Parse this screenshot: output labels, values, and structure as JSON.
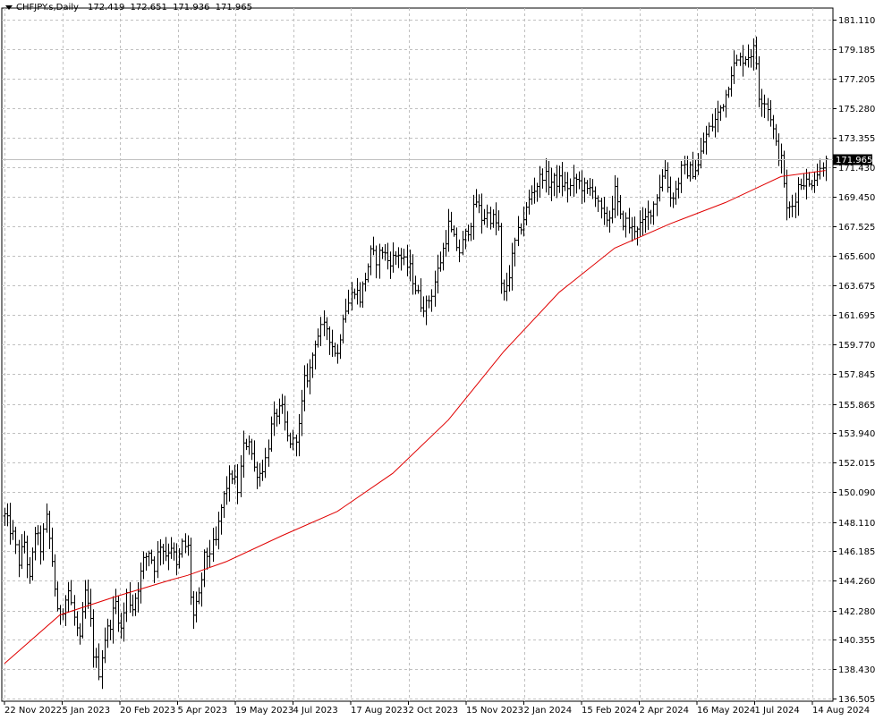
{
  "header": {
    "symbol_timeframe": "CHFJPY.s,Daily",
    "open": "172.419",
    "high": "172.651",
    "low": "171.936",
    "close": "171.965"
  },
  "colors": {
    "background": "#ffffff",
    "grid": "#c0c0c0",
    "bar": "#000000",
    "ma_line": "#e00000",
    "current_price_line": "#c0c0c0",
    "current_price_label_bg": "#000000",
    "current_price_label_text": "#ffffff"
  },
  "chart_data": {
    "type": "ohlc",
    "timeframe": "Daily",
    "symbol": "CHFJPY.s",
    "current_price": 171.965,
    "current_price_label": "171.965",
    "y_ticks": [
      "181.110",
      "179.185",
      "177.205",
      "175.280",
      "173.355",
      "171.430",
      "169.450",
      "167.525",
      "165.600",
      "163.675",
      "161.695",
      "159.770",
      "157.845",
      "155.865",
      "153.940",
      "152.015",
      "150.090",
      "148.110",
      "146.185",
      "144.260",
      "142.280",
      "140.355",
      "138.430",
      "136.505"
    ],
    "ylim": [
      136.505,
      181.11
    ],
    "x_ticks": [
      "22 Nov 2022",
      "5 Jan 2023",
      "20 Feb 2023",
      "5 Apr 2023",
      "19 May 2023",
      "4 Jul 2023",
      "17 Aug 2023",
      "2 Oct 2023",
      "15 Nov 2023",
      "2 Jan 2024",
      "15 Feb 2024",
      "2 Apr 2024",
      "16 May 2024",
      "1 Jul 2024",
      "14 Aug 2024"
    ],
    "grid": true,
    "price_path": [
      [
        0,
        148.5
      ],
      [
        3,
        147.2
      ],
      [
        5,
        145.5
      ],
      [
        7,
        146.8
      ],
      [
        9,
        144.2
      ],
      [
        11,
        147.5
      ],
      [
        13,
        146.4
      ],
      [
        15,
        148.3
      ],
      [
        17,
        145.6
      ],
      [
        19,
        142.0
      ],
      [
        21,
        142.5
      ],
      [
        23,
        143.6
      ],
      [
        25,
        141.8
      ],
      [
        27,
        140.2
      ],
      [
        29,
        143.5
      ],
      [
        31,
        141.5
      ],
      [
        32,
        139.5
      ],
      [
        34,
        138.3
      ],
      [
        36,
        140.5
      ],
      [
        38,
        141.5
      ],
      [
        40,
        142.8
      ],
      [
        42,
        141.0
      ],
      [
        44,
        143.3
      ],
      [
        46,
        142.5
      ],
      [
        48,
        143.9
      ],
      [
        50,
        145.5
      ],
      [
        52,
        146.2
      ],
      [
        54,
        145.2
      ],
      [
        56,
        146.7
      ],
      [
        58,
        146.0
      ],
      [
        60,
        146.6
      ],
      [
        62,
        145.1
      ],
      [
        64,
        146.6
      ],
      [
        66,
        146.4
      ],
      [
        67,
        143.3
      ],
      [
        68,
        141.9
      ],
      [
        70,
        143.1
      ],
      [
        72,
        145.7
      ],
      [
        74,
        146.2
      ],
      [
        76,
        146.8
      ],
      [
        78,
        149.0
      ],
      [
        80,
        150.5
      ],
      [
        82,
        151.2
      ],
      [
        84,
        150.2
      ],
      [
        86,
        153.0
      ],
      [
        88,
        153.6
      ],
      [
        90,
        151.6
      ],
      [
        92,
        151.3
      ],
      [
        94,
        152.2
      ],
      [
        96,
        154.3
      ],
      [
        98,
        155.3
      ],
      [
        100,
        155.4
      ],
      [
        102,
        153.6
      ],
      [
        104,
        153.3
      ],
      [
        106,
        154.3
      ],
      [
        108,
        157.3
      ],
      [
        110,
        158.1
      ],
      [
        112,
        160.1
      ],
      [
        114,
        160.7
      ],
      [
        116,
        160.9
      ],
      [
        118,
        159.7
      ],
      [
        120,
        159.1
      ],
      [
        122,
        161.8
      ],
      [
        124,
        162.5
      ],
      [
        126,
        163.5
      ],
      [
        128,
        162.8
      ],
      [
        130,
        164.2
      ],
      [
        132,
        165.7
      ],
      [
        134,
        165.4
      ],
      [
        136,
        166.0
      ],
      [
        138,
        165.3
      ],
      [
        140,
        165.4
      ],
      [
        142,
        165.8
      ],
      [
        144,
        165.1
      ],
      [
        146,
        164.7
      ],
      [
        148,
        163.5
      ],
      [
        150,
        162.5
      ],
      [
        152,
        162.3
      ],
      [
        154,
        163.2
      ],
      [
        156,
        164.6
      ],
      [
        158,
        166.0
      ],
      [
        160,
        167.6
      ],
      [
        162,
        166.6
      ],
      [
        164,
        165.9
      ],
      [
        166,
        166.9
      ],
      [
        168,
        167.9
      ],
      [
        170,
        169.2
      ],
      [
        172,
        168.1
      ],
      [
        174,
        168.3
      ],
      [
        176,
        168.0
      ],
      [
        178,
        167.4
      ],
      [
        179,
        163.5
      ],
      [
        180,
        163.0
      ],
      [
        182,
        164.4
      ],
      [
        184,
        166.4
      ],
      [
        186,
        167.6
      ],
      [
        188,
        168.6
      ],
      [
        190,
        169.8
      ],
      [
        192,
        170.3
      ],
      [
        194,
        171.0
      ],
      [
        196,
        170.4
      ],
      [
        198,
        170.5
      ],
      [
        200,
        170.5
      ],
      [
        202,
        170.2
      ],
      [
        204,
        170.1
      ],
      [
        206,
        170.6
      ],
      [
        208,
        170.2
      ],
      [
        210,
        169.8
      ],
      [
        212,
        170.2
      ],
      [
        214,
        168.8
      ],
      [
        216,
        168.0
      ],
      [
        218,
        168.2
      ],
      [
        220,
        169.8
      ],
      [
        222,
        168.0
      ],
      [
        224,
        167.8
      ],
      [
        226,
        167.3
      ],
      [
        228,
        167.6
      ],
      [
        230,
        167.6
      ],
      [
        232,
        168.3
      ],
      [
        234,
        169.0
      ],
      [
        236,
        170.3
      ],
      [
        238,
        171.3
      ],
      [
        240,
        169.4
      ],
      [
        242,
        169.9
      ],
      [
        244,
        171.2
      ],
      [
        246,
        171.2
      ],
      [
        248,
        171.2
      ],
      [
        250,
        171.5
      ],
      [
        252,
        173.1
      ],
      [
        254,
        173.9
      ],
      [
        256,
        174.5
      ],
      [
        258,
        175.3
      ],
      [
        260,
        176.2
      ],
      [
        262,
        177.8
      ],
      [
        264,
        178.3
      ],
      [
        266,
        178.6
      ],
      [
        268,
        178.8
      ],
      [
        270,
        179.1
      ],
      [
        271,
        178.3
      ],
      [
        272,
        176.2
      ],
      [
        274,
        175.8
      ],
      [
        276,
        174.8
      ],
      [
        278,
        172.8
      ],
      [
        280,
        171.8
      ],
      [
        281,
        170.5
      ],
      [
        282,
        168.5
      ],
      [
        284,
        168.9
      ],
      [
        286,
        170.2
      ],
      [
        288,
        170.6
      ],
      [
        290,
        170.2
      ],
      [
        292,
        170.9
      ],
      [
        294,
        171.2
      ],
      [
        296,
        172.3
      ]
    ],
    "moving_average": [
      [
        0,
        138.8
      ],
      [
        20,
        142.0
      ],
      [
        40,
        143.2
      ],
      [
        60,
        144.3
      ],
      [
        66,
        144.6
      ],
      [
        80,
        145.5
      ],
      [
        100,
        147.2
      ],
      [
        120,
        148.8
      ],
      [
        140,
        151.3
      ],
      [
        160,
        154.8
      ],
      [
        180,
        159.3
      ],
      [
        200,
        163.2
      ],
      [
        220,
        166.1
      ],
      [
        240,
        167.7
      ],
      [
        260,
        169.1
      ],
      [
        270,
        169.95
      ],
      [
        280,
        170.8
      ],
      [
        296,
        171.2
      ]
    ]
  }
}
